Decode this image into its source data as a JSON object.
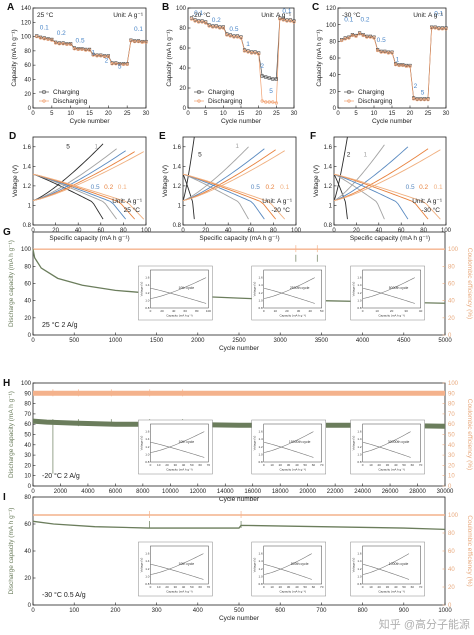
{
  "figure": {
    "watermark": "知乎 @高分子能源",
    "colors": {
      "charging": "#4a4a4a",
      "discharging": "#f0a070",
      "cyc_green": "#6b7d5c",
      "ce_orange": "#f4b28c",
      "text_blue": "#4a86c8",
      "ce_axis": "#e8a87c"
    }
  },
  "chart_data": [
    {
      "id": "A",
      "type": "scatter",
      "panel_letter": "A",
      "xlabel": "Cycle number",
      "ylabel": "Capacity (mA h g⁻¹)",
      "xlim": [
        0,
        30
      ],
      "ylim": [
        0,
        140
      ],
      "xticks": [
        0,
        5,
        10,
        15,
        20,
        25,
        30
      ],
      "yticks": [
        0,
        20,
        40,
        60,
        80,
        100,
        120,
        140
      ],
      "temp_label": "25 °C",
      "unit_label": "Unit: A g⁻¹",
      "legend": [
        "Charging",
        "Discharging"
      ],
      "rate_labels": [
        {
          "text": "0.1",
          "x": 3,
          "y": 110
        },
        {
          "text": "0.2",
          "x": 7.5,
          "y": 102
        },
        {
          "text": "0.5",
          "x": 12.5,
          "y": 92
        },
        {
          "text": "1",
          "x": 16,
          "y": 75
        },
        {
          "text": "2",
          "x": 19.5,
          "y": 64
        },
        {
          "text": "5",
          "x": 23,
          "y": 55
        },
        {
          "text": "0.1",
          "x": 28,
          "y": 108
        }
      ],
      "series": [
        {
          "name": "Charging",
          "values": [
            101,
            99,
            98,
            97,
            96,
            92,
            91,
            91,
            90,
            90,
            84,
            83,
            83,
            82,
            82,
            75,
            74,
            74,
            73,
            73,
            63,
            63,
            62,
            62,
            62,
            95,
            94,
            94,
            93,
            93
          ]
        },
        {
          "name": "Discharging",
          "values": [
            100,
            98,
            97,
            96,
            95,
            91,
            90,
            90,
            89,
            89,
            83,
            82,
            82,
            81,
            81,
            74,
            73,
            73,
            72,
            72,
            62,
            62,
            61,
            61,
            61,
            94,
            93,
            93,
            92,
            92
          ]
        }
      ]
    },
    {
      "id": "B",
      "type": "scatter",
      "panel_letter": "B",
      "xlabel": "Cycle number",
      "ylabel": "Capacity (mA h g⁻¹)",
      "xlim": [
        0,
        30
      ],
      "ylim": [
        0,
        100
      ],
      "xticks": [
        0,
        5,
        10,
        15,
        20,
        25,
        30
      ],
      "yticks": [
        0,
        20,
        40,
        60,
        80,
        100
      ],
      "temp_label": "-20 °C",
      "unit_label": "Unit: A g⁻¹",
      "legend": [
        "Charging",
        "Discharging"
      ],
      "rate_labels": [
        {
          "text": "0.1",
          "x": 3,
          "y": 93
        },
        {
          "text": "0.2",
          "x": 8,
          "y": 86
        },
        {
          "text": "0.5",
          "x": 13,
          "y": 77
        },
        {
          "text": "1",
          "x": 17,
          "y": 62
        },
        {
          "text": "2",
          "x": 21,
          "y": 40
        },
        {
          "text": "5",
          "x": 23.5,
          "y": 15
        },
        {
          "text": "0.1",
          "x": 28,
          "y": 95
        }
      ],
      "series": [
        {
          "name": "Charging",
          "values": [
            90,
            88,
            87,
            87,
            86,
            83,
            82,
            82,
            81,
            81,
            74,
            73,
            72,
            72,
            71,
            58,
            57,
            56,
            56,
            55,
            32,
            31,
            30,
            29,
            29,
            90,
            89,
            88,
            88,
            87
          ]
        },
        {
          "name": "Discharging",
          "values": [
            89,
            87,
            86,
            86,
            85,
            82,
            81,
            81,
            80,
            80,
            73,
            72,
            71,
            71,
            70,
            57,
            56,
            55,
            55,
            54,
            7,
            6,
            6,
            6,
            5,
            89,
            88,
            87,
            87,
            86
          ]
        }
      ]
    },
    {
      "id": "C",
      "type": "scatter",
      "panel_letter": "C",
      "xlabel": "Cycle number",
      "ylabel": "Capacity (mA h g⁻¹)",
      "xlim": [
        0,
        30
      ],
      "ylim": [
        0,
        120
      ],
      "xticks": [
        0,
        5,
        10,
        15,
        20,
        25,
        30
      ],
      "yticks": [
        0,
        20,
        40,
        60,
        80,
        100,
        120
      ],
      "temp_label": "-30 °C",
      "unit_label": "Unit: A g⁻¹",
      "legend": [
        "Charging",
        "Discharging"
      ],
      "rate_labels": [
        {
          "text": "0.1",
          "x": 3,
          "y": 104
        },
        {
          "text": "0.2",
          "x": 7.5,
          "y": 104
        },
        {
          "text": "0.5",
          "x": 12,
          "y": 79
        },
        {
          "text": "1",
          "x": 16.5,
          "y": 56
        },
        {
          "text": "2",
          "x": 21.5,
          "y": 24
        },
        {
          "text": "5",
          "x": 23.5,
          "y": 16
        },
        {
          "text": "0.1",
          "x": 28,
          "y": 111
        }
      ],
      "series": [
        {
          "name": "Charging",
          "values": [
            82,
            84,
            85,
            88,
            87,
            90,
            88,
            86,
            86,
            85,
            70,
            68,
            68,
            67,
            67,
            53,
            52,
            52,
            51,
            51,
            12,
            11,
            11,
            11,
            11,
            97,
            97,
            96,
            96,
            96
          ]
        },
        {
          "name": "Discharging",
          "values": [
            81,
            83,
            84,
            87,
            86,
            89,
            87,
            85,
            85,
            84,
            69,
            67,
            67,
            66,
            66,
            52,
            51,
            51,
            50,
            50,
            11,
            10,
            10,
            10,
            10,
            96,
            96,
            95,
            95,
            95
          ]
        }
      ]
    },
    {
      "id": "D",
      "type": "line",
      "panel_letter": "D",
      "xlabel": "Specific capacity (mA h g⁻¹)",
      "ylabel": "Voltage (V)",
      "xlim": [
        0,
        100
      ],
      "ylim": [
        0.8,
        1.7
      ],
      "xticks": [
        0,
        20,
        40,
        60,
        80,
        100
      ],
      "yticks": [
        0.8,
        1.0,
        1.2,
        1.4,
        1.6
      ],
      "temp_label": "25 °C",
      "unit_label": "Unit: A g⁻¹",
      "curves": [
        {
          "label": "5",
          "cap": 62,
          "vhi": 1.63,
          "vlo": 0.85,
          "color": "#2b2b2b"
        },
        {
          "label": "1",
          "cap": 74,
          "vhi": 1.58,
          "vlo": 0.85,
          "color": "#a3a3a3"
        },
        {
          "label": "0.5",
          "cap": 82,
          "vhi": 1.56,
          "vlo": 0.85,
          "color": "#5a8ac0"
        },
        {
          "label": "0.2",
          "cap": 90,
          "vhi": 1.55,
          "vlo": 0.85,
          "color": "#e8823e"
        },
        {
          "label": "0.1",
          "cap": 98,
          "vhi": 1.55,
          "vlo": 0.85,
          "color": "#f0b080"
        }
      ],
      "label_pos": [
        {
          "text": "5",
          "x": 31,
          "y": 1.58
        },
        {
          "text": "1",
          "x": 56,
          "y": 1.58
        },
        {
          "text": "0.5",
          "x": 55,
          "y": 1.17
        },
        {
          "text": "0.2",
          "x": 67,
          "y": 1.17
        },
        {
          "text": "0.1",
          "x": 79,
          "y": 1.17
        }
      ]
    },
    {
      "id": "E",
      "type": "line",
      "panel_letter": "E",
      "xlabel": "Specific capacity (mA h g⁻¹)",
      "ylabel": "Voltage (V)",
      "xlim": [
        0,
        100
      ],
      "ylim": [
        0.8,
        1.7
      ],
      "xticks": [
        0,
        20,
        40,
        60,
        80,
        100
      ],
      "yticks": [
        0.8,
        1.0,
        1.2,
        1.4,
        1.6
      ],
      "temp_label": "-20 °C",
      "unit_label": "Unit: A g⁻¹",
      "curves": [
        {
          "label": "5",
          "cap": 10,
          "vhi": 1.7,
          "vlo": 0.85,
          "color": "#2b2b2b"
        },
        {
          "label": "1",
          "cap": 58,
          "vhi": 1.6,
          "vlo": 0.85,
          "color": "#a3a3a3"
        },
        {
          "label": "0.5",
          "cap": 72,
          "vhi": 1.58,
          "vlo": 0.85,
          "color": "#5a8ac0"
        },
        {
          "label": "0.2",
          "cap": 82,
          "vhi": 1.57,
          "vlo": 0.85,
          "color": "#e8823e"
        },
        {
          "label": "0.1",
          "cap": 90,
          "vhi": 1.56,
          "vlo": 0.85,
          "color": "#f0b080"
        }
      ],
      "label_pos": [
        {
          "text": "5",
          "x": 15,
          "y": 1.5
        },
        {
          "text": "1",
          "x": 48,
          "y": 1.59
        },
        {
          "text": "0.5",
          "x": 64,
          "y": 1.17
        },
        {
          "text": "0.2",
          "x": 77,
          "y": 1.17
        },
        {
          "text": "0.1",
          "x": 90,
          "y": 1.17
        }
      ]
    },
    {
      "id": "F",
      "type": "line",
      "panel_letter": "F",
      "xlabel": "Specific capacity (mA h g⁻¹)",
      "ylabel": "Voltage (V)",
      "xlim": [
        0,
        100
      ],
      "ylim": [
        0.8,
        1.7
      ],
      "xticks": [
        0,
        20,
        40,
        60,
        80,
        100
      ],
      "yticks": [
        0.8,
        1.0,
        1.2,
        1.4,
        1.6
      ],
      "temp_label": "-30 °C",
      "unit_label": "Unit: A g⁻¹",
      "curves": [
        {
          "label": "2",
          "cap": 12,
          "vhi": 1.7,
          "vlo": 0.85,
          "color": "#2b2b2b"
        },
        {
          "label": "1",
          "cap": 45,
          "vhi": 1.62,
          "vlo": 0.85,
          "color": "#a3a3a3"
        },
        {
          "label": "0.5",
          "cap": 66,
          "vhi": 1.6,
          "vlo": 0.85,
          "color": "#5a8ac0"
        },
        {
          "label": "0.2",
          "cap": 84,
          "vhi": 1.58,
          "vlo": 0.85,
          "color": "#e8823e"
        },
        {
          "label": "0.1",
          "cap": 95,
          "vhi": 1.57,
          "vlo": 0.85,
          "color": "#f0b080"
        }
      ],
      "label_pos": [
        {
          "text": "2",
          "x": 13,
          "y": 1.5
        },
        {
          "text": "1",
          "x": 28,
          "y": 1.5
        },
        {
          "text": "0.5",
          "x": 68,
          "y": 1.17
        },
        {
          "text": "0.2",
          "x": 80,
          "y": 1.17
        },
        {
          "text": "0.1",
          "x": 93,
          "y": 1.17
        }
      ]
    },
    {
      "id": "G",
      "type": "line",
      "panel_letter": "G",
      "xlabel": "Cycle number",
      "ylabel": "Discharge capacity (mA h g⁻¹)",
      "y2label": "Coulombic efficiency (%)",
      "xlim": [
        0,
        5000
      ],
      "ylim": [
        0,
        120
      ],
      "y2lim": [
        0,
        120
      ],
      "xticks": [
        0,
        500,
        1000,
        1500,
        2000,
        2500,
        3000,
        3500,
        4000,
        4500,
        5000
      ],
      "yticks": [
        0,
        20,
        40,
        60,
        80,
        100
      ],
      "y2ticks": [
        0,
        20,
        40,
        60,
        80,
        100
      ],
      "condition": "25 °C   2 A/g",
      "capacity": {
        "x": [
          0,
          20,
          100,
          300,
          600,
          1000,
          1500,
          2000,
          2500,
          3000,
          3500,
          4000,
          4500,
          5000
        ],
        "y": [
          100,
          90,
          78,
          66,
          58,
          52,
          48,
          45,
          43,
          41,
          40,
          39,
          38,
          37
        ]
      },
      "ce": {
        "x": [
          0,
          5000
        ],
        "y": [
          100,
          100
        ]
      },
      "spikes": [
        3190,
        3450
      ],
      "insets": [
        {
          "cycle": "10th cycle",
          "xlim": [
            0,
            100
          ],
          "xticks": [
            0,
            20,
            40,
            60,
            80,
            100
          ],
          "cap": 96
        },
        {
          "cycle": "2500th cycle",
          "xlim": [
            0,
            50
          ],
          "xticks": [
            0,
            10,
            20,
            30,
            40,
            50
          ],
          "cap": 44
        },
        {
          "cycle": "5000th cycle",
          "xlim": [
            0,
            40
          ],
          "xticks": [
            0,
            10,
            20,
            30,
            40
          ],
          "cap": 36
        }
      ]
    },
    {
      "id": "H",
      "type": "line",
      "panel_letter": "H",
      "xlabel": "Cycle number",
      "ylabel": "Discharge capacity (mA h g⁻¹)",
      "y2label": "Coulombic efficiency (%)",
      "xlim": [
        0,
        30000
      ],
      "ylim": [
        0,
        100
      ],
      "y2lim": [
        0,
        100
      ],
      "xticks": [
        0,
        2000,
        4000,
        6000,
        8000,
        10000,
        12000,
        14000,
        16000,
        18000,
        20000,
        22000,
        24000,
        26000,
        28000,
        30000
      ],
      "yticks": [
        0,
        10,
        20,
        30,
        40,
        50,
        60,
        70,
        80,
        90,
        100
      ],
      "y2ticks": [
        0,
        10,
        20,
        30,
        40,
        50,
        60,
        70,
        80,
        90,
        100
      ],
      "condition": "-20 °C   2 A/g",
      "capacity": {
        "x": [
          0,
          1000,
          3000,
          6000,
          10000,
          15000,
          20000,
          25000,
          30000
        ],
        "y": [
          63,
          62,
          61,
          60,
          60,
          59,
          59,
          59,
          58
        ]
      },
      "ce": {
        "x": [
          0,
          30000
        ],
        "y": [
          90,
          90
        ]
      },
      "spikes": [
        1450,
        3300,
        5700,
        8500,
        10900
      ],
      "insets": [
        {
          "cycle": "10th cycle",
          "xlim": [
            0,
            70
          ],
          "xticks": [
            0,
            10,
            20,
            30,
            40,
            50,
            60,
            70
          ],
          "cap": 65
        },
        {
          "cycle": "15000th cycle",
          "xlim": [
            0,
            70
          ],
          "xticks": [
            0,
            10,
            20,
            30,
            40,
            50,
            60,
            70
          ],
          "cap": 60
        },
        {
          "cycle": "30000th cycle",
          "xlim": [
            0,
            70
          ],
          "xticks": [
            0,
            10,
            20,
            30,
            40,
            50,
            60,
            70
          ],
          "cap": 58
        }
      ]
    },
    {
      "id": "I",
      "type": "line",
      "panel_letter": "I",
      "xlabel": "Cycle number",
      "ylabel": "Discharge capacity (mA h g⁻¹)",
      "y2label": "Coulombic efficiency (%)",
      "xlim": [
        0,
        1000
      ],
      "ylim": [
        0,
        80
      ],
      "y2lim": [
        0,
        120
      ],
      "xticks": [
        0,
        100,
        200,
        300,
        400,
        500,
        600,
        700,
        800,
        900,
        1000
      ],
      "yticks": [
        0,
        20,
        40,
        60,
        80
      ],
      "y2ticks": [
        0,
        20,
        40,
        60,
        80,
        100
      ],
      "condition": "-30 °C   0.5 A/g",
      "capacity": {
        "x": [
          0,
          50,
          150,
          280,
          290,
          400,
          500,
          505,
          700,
          900,
          1000
        ],
        "y": [
          62,
          60,
          58,
          57,
          57,
          57,
          57,
          59,
          58,
          57,
          56
        ]
      },
      "ce": {
        "x": [
          0,
          1000
        ],
        "y": [
          100,
          100
        ]
      },
      "spikes": [
        283,
        505
      ],
      "insets": [
        {
          "cycle": "10th cycle",
          "xlim": [
            0,
            70
          ],
          "xticks": [
            0,
            10,
            20,
            30,
            40,
            50,
            60,
            70
          ],
          "cap": 64
        },
        {
          "cycle": "500th cycle",
          "xlim": [
            0,
            70
          ],
          "xticks": [
            0,
            10,
            20,
            30,
            40,
            50,
            60,
            70
          ],
          "cap": 58
        },
        {
          "cycle": "1000th cycle",
          "xlim": [
            0,
            70
          ],
          "xticks": [
            0,
            10,
            20,
            30,
            40,
            50,
            60,
            70
          ],
          "cap": 56
        }
      ]
    }
  ]
}
